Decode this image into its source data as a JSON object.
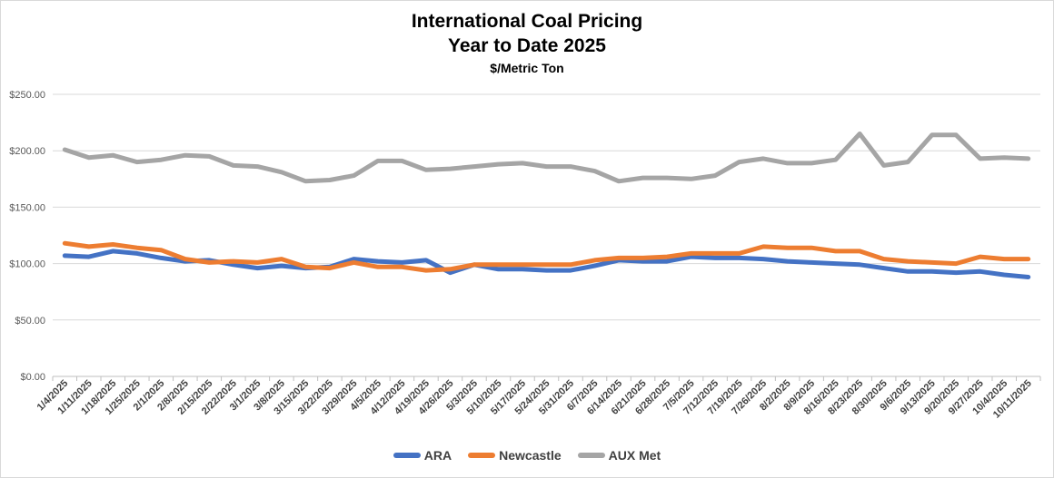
{
  "chart_data": {
    "type": "line",
    "title": "International Coal Pricing",
    "subtitle": "Year to Date 2025",
    "subtitle2": "$/Metric Ton",
    "xlabel": "",
    "ylabel": "",
    "ylim": [
      0,
      250
    ],
    "y_ticks": [
      0,
      50,
      100,
      150,
      200,
      250
    ],
    "y_tick_labels": [
      "$0.00",
      "$50.00",
      "$100.00",
      "$150.00",
      "$200.00",
      "$250.00"
    ],
    "grid": true,
    "legend_position": "bottom",
    "categories": [
      "1/4/2025",
      "1/11/2025",
      "1/18/2025",
      "1/25/2025",
      "2/1/2025",
      "2/8/2025",
      "2/15/2025",
      "2/22/2025",
      "3/1/2025",
      "3/8/2025",
      "3/15/2025",
      "3/22/2025",
      "3/29/2025",
      "4/5/2025",
      "4/12/2025",
      "4/19/2025",
      "4/26/2025",
      "5/3/2025",
      "5/10/2025",
      "5/17/2025",
      "5/24/2025",
      "5/31/2025",
      "6/7/2025",
      "6/14/2025",
      "6/21/2025",
      "6/28/2025",
      "7/5/2025",
      "7/12/2025",
      "7/19/2025",
      "7/26/2025",
      "8/2/2025",
      "8/9/2025",
      "8/16/2025",
      "8/23/2025",
      "8/30/2025",
      "9/6/2025",
      "9/13/2025",
      "9/20/2025",
      "9/27/2025",
      "10/4/2025",
      "10/11/2025"
    ],
    "series": [
      {
        "name": "ARA",
        "color": "#4472c4",
        "values": [
          107,
          106,
          111,
          109,
          105,
          102,
          103,
          99,
          96,
          98,
          96,
          97,
          104,
          102,
          101,
          103,
          92,
          99,
          95,
          95,
          94,
          94,
          98,
          103,
          102,
          102,
          106,
          105,
          105,
          104,
          102,
          101,
          100,
          99,
          96,
          93,
          93,
          92,
          93,
          90,
          88
        ]
      },
      {
        "name": "Newcastle",
        "color": "#ed7d31",
        "values": [
          118,
          115,
          117,
          114,
          112,
          104,
          101,
          102,
          101,
          104,
          97,
          96,
          101,
          97,
          97,
          94,
          95,
          99,
          99,
          99,
          99,
          99,
          103,
          105,
          105,
          106,
          109,
          109,
          109,
          115,
          114,
          114,
          111,
          111,
          104,
          102,
          101,
          100,
          106,
          104,
          104
        ]
      },
      {
        "name": "AUX Met",
        "color": "#a5a5a5",
        "values": [
          201,
          194,
          196,
          190,
          192,
          196,
          195,
          187,
          186,
          181,
          173,
          174,
          178,
          191,
          191,
          183,
          184,
          186,
          188,
          189,
          186,
          186,
          182,
          173,
          176,
          176,
          175,
          178,
          190,
          193,
          189,
          189,
          192,
          215,
          187,
          190,
          214,
          214,
          193,
          194,
          193
        ]
      }
    ]
  }
}
